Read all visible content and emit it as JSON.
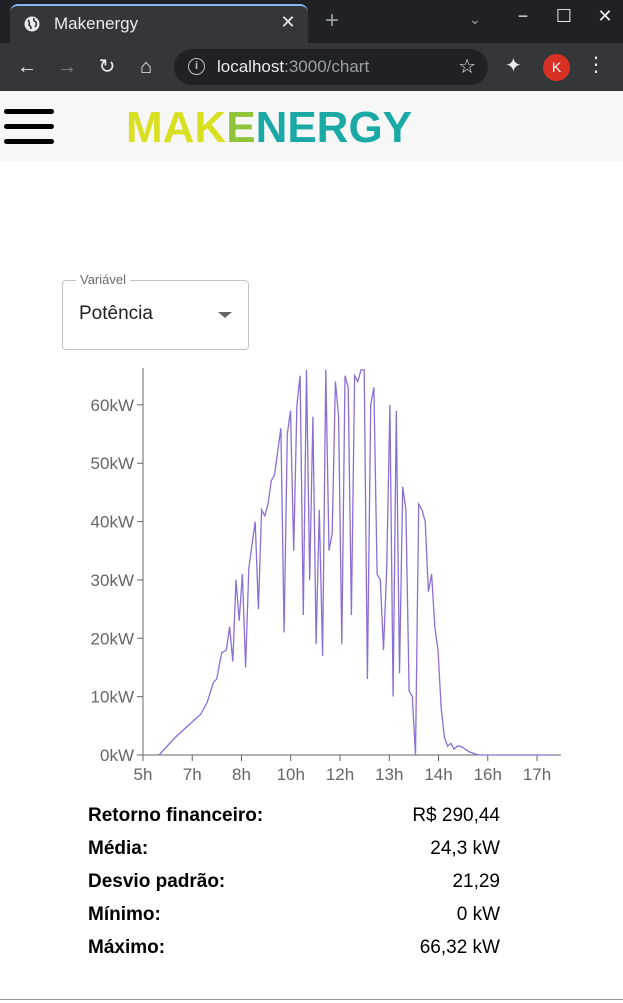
{
  "browser": {
    "tab_title": "Makenergy",
    "tab_close": "✕",
    "new_tab": "+",
    "url_host": "localhost",
    "url_path": ":3000/chart",
    "profile_initial": "K"
  },
  "app": {
    "logo_part1": "MAK",
    "logo_part2": "E",
    "logo_part3": "NERGY"
  },
  "select": {
    "label": "Variável",
    "value": "Potência"
  },
  "chart_data": {
    "type": "line",
    "ylabel_ticks": [
      "0kW",
      "10kW",
      "20kW",
      "30kW",
      "40kW",
      "50kW",
      "60kW"
    ],
    "xlabel_ticks": [
      "5h",
      "7h",
      "8h",
      "10h",
      "12h",
      "13h",
      "14h",
      "16h",
      "17h"
    ],
    "y_unit": "kW",
    "ylim": [
      0,
      66.32
    ],
    "line_color": "#8b6fd6",
    "series": [
      {
        "x": [
          5.5,
          6.0,
          6.5,
          6.8,
          7.0,
          7.2,
          7.3,
          7.45,
          7.6,
          7.7,
          7.8,
          7.9,
          8.0,
          8.1,
          8.2,
          8.3,
          8.4,
          8.5,
          8.6,
          8.7,
          8.8,
          8.9,
          9.0,
          9.1,
          9.2,
          9.3,
          9.4,
          9.5,
          9.6,
          9.7,
          9.8,
          9.9,
          10.0,
          10.1,
          10.2,
          10.3,
          10.4,
          10.5,
          10.6,
          10.7,
          10.8,
          10.9,
          11.0,
          11.1,
          11.2,
          11.3,
          11.4,
          11.5,
          11.6,
          11.7,
          11.8,
          11.9,
          12.0,
          12.1,
          12.2,
          12.3,
          12.4,
          12.5,
          12.6,
          12.7,
          12.8,
          12.9,
          13.0,
          13.1,
          13.2,
          13.3,
          13.4,
          13.5,
          13.6,
          13.7,
          13.8,
          13.9,
          14.0,
          14.1,
          14.2,
          14.3,
          14.4,
          14.5,
          14.6,
          14.7,
          14.8,
          14.9,
          15.0,
          15.1,
          15.2,
          15.3,
          15.4,
          15.5,
          15.6,
          15.7,
          15.8,
          15.9,
          16.0,
          16.2,
          16.4,
          16.6,
          16.8,
          17.0,
          17.2,
          17.5,
          17.8
        ],
        "values": [
          0,
          3,
          5.5,
          7,
          9,
          12.5,
          13,
          17.5,
          18,
          22,
          16,
          30,
          23,
          31,
          15,
          32,
          36,
          40,
          25,
          42,
          41,
          43,
          47,
          48,
          52,
          56,
          21,
          55,
          59,
          35,
          60,
          65,
          24,
          66,
          30,
          58,
          19,
          42,
          17,
          66,
          35,
          38,
          64,
          58,
          19,
          65,
          63,
          24,
          65,
          64,
          66,
          66,
          13,
          60,
          63,
          31,
          30,
          18,
          32,
          60,
          10,
          59,
          14,
          46,
          42,
          11,
          10,
          0,
          43,
          42,
          40,
          28,
          31,
          22,
          18,
          8,
          3,
          1.5,
          2,
          1,
          1.5,
          1.5,
          1.2,
          0.8,
          0.5,
          0.3,
          0.1,
          0,
          0,
          0,
          0,
          0,
          0,
          0,
          0,
          0,
          0,
          0,
          0,
          0,
          0
        ]
      }
    ]
  },
  "stats": {
    "retorno_label": "Retorno financeiro:",
    "retorno_value": "R$ 290,44",
    "media_label": "Média:",
    "media_value": "24,3 kW",
    "desvio_label": "Desvio padrão:",
    "desvio_value": "21,29",
    "minimo_label": "Mínimo:",
    "minimo_value": "0 kW",
    "maximo_label": "Máximo:",
    "maximo_value": "66,32 kW"
  }
}
